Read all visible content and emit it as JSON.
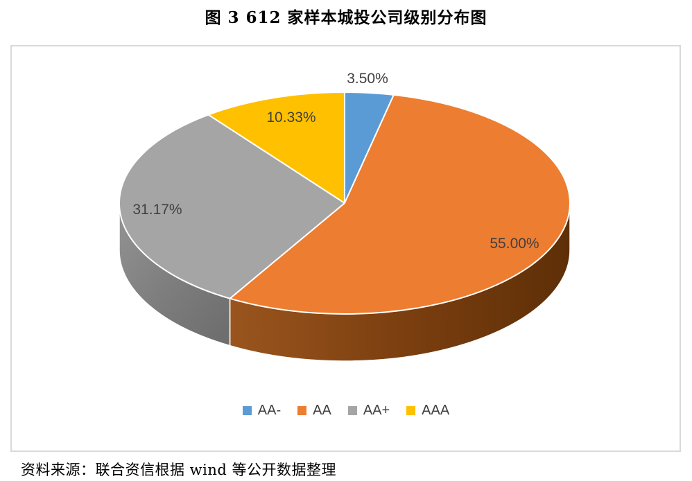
{
  "page": {
    "title": "图 3  612 家样本城投公司级别分布图",
    "source_note": "资料来源：联合资信根据 wind 等公开数据整理"
  },
  "chart_data": {
    "type": "pie",
    "style": "3d-pie",
    "title": "图 3  612 家样本城投公司级别分布图",
    "start_angle_deg": 0,
    "direction": "clockwise",
    "legend_position": "bottom",
    "grid": false,
    "panel_border_color": "#D9D9D9",
    "label_color": "#404040",
    "stroke_color": "#FFFFFF",
    "categories": [
      "AA-",
      "AA",
      "AA+",
      "AAA"
    ],
    "values": [
      3.5,
      55.0,
      31.17,
      10.33
    ],
    "slices": [
      {
        "name": "AA-",
        "value": 3.5,
        "label": "3.50%",
        "color": "#5B9BD5",
        "label_placement": "outside"
      },
      {
        "name": "AA",
        "value": 55.0,
        "label": "55.00%",
        "color": "#ED7D31",
        "label_placement": "inside",
        "side_gradient": [
          "#9A551E",
          "#7C3F10",
          "#5E2F07"
        ]
      },
      {
        "name": "AA+",
        "value": 31.17,
        "label": "31.17%",
        "color": "#A5A5A5",
        "label_placement": "inside",
        "side_gradient": [
          "#949494",
          "#7E7E7E",
          "#6C6C6C"
        ]
      },
      {
        "name": "AAA",
        "value": 10.33,
        "label": "10.33%",
        "color": "#FFC000",
        "label_placement": "inside"
      }
    ]
  }
}
